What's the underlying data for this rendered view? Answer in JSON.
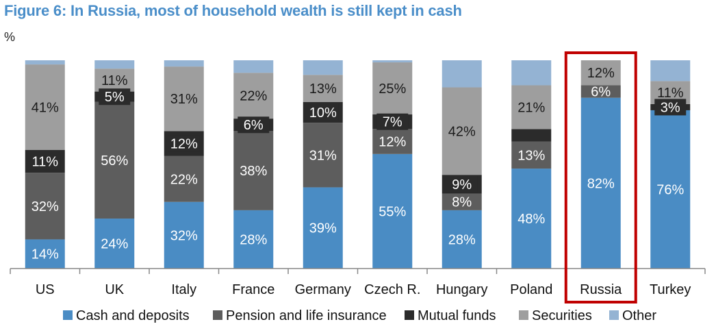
{
  "title": "Figure 6: In Russia, most of household wealth is still kept in cash",
  "unit_label": "%",
  "colors": {
    "title": "#4a8ec9",
    "cash": "#4a8cc4",
    "pension": "#5d5d5d",
    "mutual": "#2b2b2b",
    "securities": "#9e9e9e",
    "other": "#94b3d3",
    "highlight": "#c00000"
  },
  "chart_data": {
    "type": "bar",
    "stacked": true,
    "normalized": true,
    "categories": [
      "US",
      "UK",
      "Italy",
      "France",
      "Germany",
      "Czech R.",
      "Hungary",
      "Poland",
      "Russia",
      "Turkey"
    ],
    "series": [
      {
        "name": "Cash and deposits",
        "color_key": "cash",
        "values": [
          14,
          24,
          32,
          28,
          39,
          55,
          28,
          48,
          82,
          76
        ],
        "labels": [
          "14%",
          "24%",
          "32%",
          "28%",
          "39%",
          "55%",
          "28%",
          "48%",
          "82%",
          "76%"
        ]
      },
      {
        "name": "Pension and life insurance",
        "color_key": "pension",
        "values": [
          32,
          56,
          22,
          38,
          31,
          12,
          8,
          13,
          6,
          0
        ],
        "labels": [
          "32%",
          "56%",
          "22%",
          "38%",
          "31%",
          "12%",
          "8%",
          "13%",
          "6%",
          ""
        ]
      },
      {
        "name": "Mutual funds",
        "color_key": "mutual",
        "values": [
          11,
          5,
          12,
          6,
          10,
          7,
          9,
          6,
          0,
          3
        ],
        "labels": [
          "11%",
          "5%",
          "12%",
          "6%",
          "10%",
          "7%",
          "9%",
          "",
          "",
          "3%"
        ]
      },
      {
        "name": "Securities",
        "color_key": "securities",
        "values": [
          41,
          11,
          31,
          22,
          13,
          25,
          42,
          21,
          12,
          11
        ],
        "labels": [
          "41%",
          "11%",
          "31%",
          "22%",
          "13%",
          "25%",
          "42%",
          "21%",
          "12%",
          "11%"
        ]
      },
      {
        "name": "Other",
        "color_key": "other",
        "values": [
          2,
          4,
          3,
          6,
          7,
          1,
          13,
          12,
          0,
          10
        ],
        "labels": [
          "",
          "",
          "",
          "",
          "",
          "",
          "",
          "",
          "",
          ""
        ]
      }
    ],
    "ylim": [
      0,
      100
    ],
    "xlabel": "",
    "ylabel": "",
    "grid": false,
    "legend_position": "bottom",
    "highlight_category": "Russia"
  }
}
